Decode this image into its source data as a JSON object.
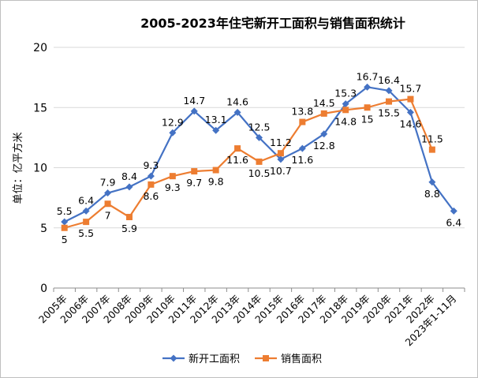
{
  "chart_data": {
    "type": "line",
    "title": "2005-2023年住宅新开工面积与销售面积统计",
    "xlabel": "",
    "ylabel": "单位：亿平方米",
    "ylim": [
      0,
      20
    ],
    "yticks": [
      0,
      5,
      10,
      15,
      20
    ],
    "grid": true,
    "legend_position": "bottom",
    "categories": [
      "2005年",
      "2006年",
      "2007年",
      "2008年",
      "2009年",
      "2010年",
      "2011年",
      "2012年",
      "2013年",
      "2014年",
      "2015年",
      "2016年",
      "2017年",
      "2018年",
      "2019年",
      "2020年",
      "2021年",
      "2022年",
      "2023年1-11月"
    ],
    "series": [
      {
        "name": "新开工面积",
        "color": "#4472c4",
        "marker": "diamond",
        "values": [
          5.5,
          6.4,
          7.9,
          8.4,
          9.3,
          12.9,
          14.7,
          13.1,
          14.6,
          12.5,
          10.7,
          11.6,
          12.8,
          15.3,
          16.7,
          16.4,
          14.6,
          8.8,
          6.4
        ]
      },
      {
        "name": "销售面积",
        "color": "#ed7d31",
        "marker": "square",
        "values": [
          5,
          5.5,
          7,
          5.9,
          8.6,
          9.3,
          9.7,
          9.8,
          11.6,
          10.5,
          11.2,
          13.8,
          14.5,
          14.8,
          15,
          15.5,
          15.7,
          11.5,
          null
        ]
      }
    ]
  }
}
